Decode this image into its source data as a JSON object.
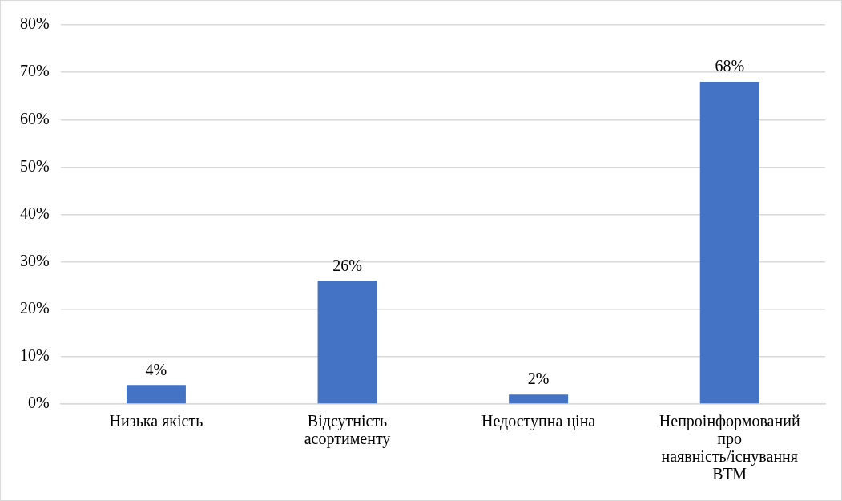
{
  "chart_data": {
    "type": "bar",
    "categories": [
      "Низька якість",
      "Відсутність асортименту",
      "Недоступна ціна",
      "Непроінформований про наявність/існування ВТМ"
    ],
    "values": [
      4,
      26,
      2,
      68
    ],
    "value_labels": [
      "4%",
      "26%",
      "2%",
      "68%"
    ],
    "color": "#4472c4",
    "ylim": [
      0,
      80
    ],
    "yticks": [
      {
        "value": 0,
        "label": "0%"
      },
      {
        "value": 10,
        "label": "10%"
      },
      {
        "value": 20,
        "label": "20%"
      },
      {
        "value": 30,
        "label": "30%"
      },
      {
        "value": 40,
        "label": "40%"
      },
      {
        "value": 50,
        "label": "50%"
      },
      {
        "value": 60,
        "label": "60%"
      },
      {
        "value": 70,
        "label": "70%"
      },
      {
        "value": 80,
        "label": "80%"
      }
    ],
    "grid": "y",
    "legend": false
  }
}
